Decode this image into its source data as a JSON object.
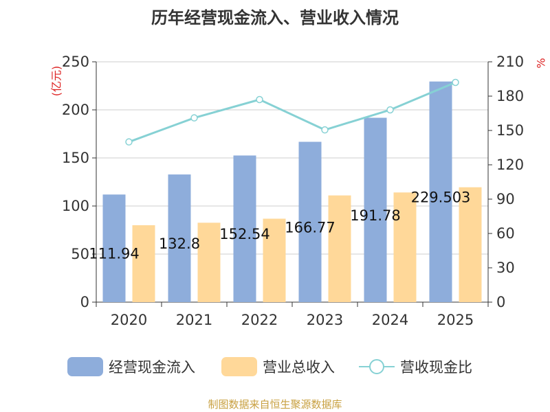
{
  "chart_data": {
    "type": "bar",
    "title": "历年经营现金流入、营业收入情况",
    "categories": [
      "2020",
      "2021",
      "2022",
      "2023",
      "2024",
      "2025"
    ],
    "series": [
      {
        "name": "经营现金流入",
        "type": "bar",
        "axis": "left",
        "values": [
          111.94,
          132.8,
          152.54,
          166.77,
          191.78,
          229.503
        ],
        "labels": [
          "111.94",
          "132.8",
          "152.54",
          "166.77",
          "191.78",
          "229.503"
        ],
        "color": "#8eaddb"
      },
      {
        "name": "营业总收入",
        "type": "bar",
        "axis": "left",
        "values": [
          80,
          82.6,
          86.8,
          111,
          114.1,
          119.5
        ],
        "color": "#ffd899"
      },
      {
        "name": "营收现金比",
        "type": "line",
        "axis": "right",
        "values": [
          140,
          161,
          177,
          150.5,
          168,
          192
        ],
        "color": "#86d1d4"
      }
    ],
    "y_left": {
      "label": "(亿元)",
      "min": 0,
      "max": 250,
      "ticks": [
        0,
        50,
        100,
        150,
        200,
        250
      ]
    },
    "y_right": {
      "label": "%",
      "min": 0,
      "max": 210,
      "ticks": [
        0,
        30,
        60,
        90,
        120,
        150,
        180,
        210
      ]
    },
    "grid": true,
    "legend_position": "bottom"
  },
  "footer": "制图数据来自恒生聚源数据库"
}
